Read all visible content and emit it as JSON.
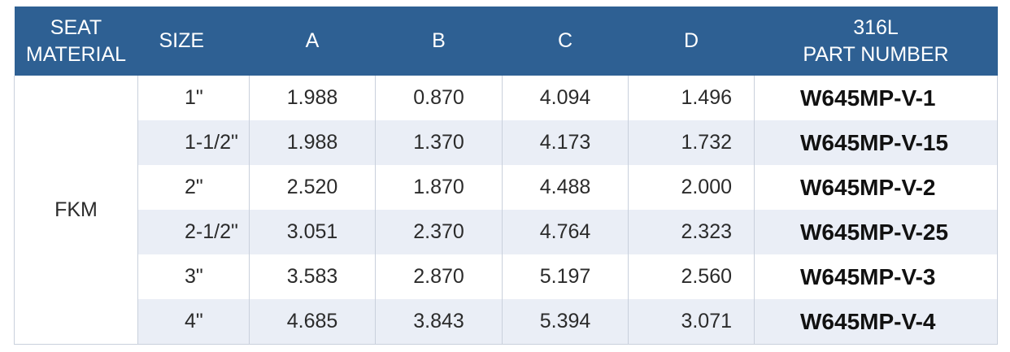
{
  "header": {
    "seat_material": [
      "SEAT",
      "MATERIAL"
    ],
    "size": "SIZE",
    "a": "A",
    "b": "B",
    "c": "C",
    "d": "D",
    "part_number": [
      "316L",
      "PART NUMBER"
    ]
  },
  "seat_material": "FKM",
  "rows": [
    {
      "size": "1\"",
      "a": "1.988",
      "b": "0.870",
      "c": "4.094",
      "d": "1.496",
      "part": "W645MP-V-1"
    },
    {
      "size": "1-1/2\"",
      "a": "1.988",
      "b": "1.370",
      "c": "4.173",
      "d": "1.732",
      "part": "W645MP-V-15"
    },
    {
      "size": "2\"",
      "a": "2.520",
      "b": "1.870",
      "c": "4.488",
      "d": "2.000",
      "part": "W645MP-V-2"
    },
    {
      "size": "2-1/2\"",
      "a": "3.051",
      "b": "2.370",
      "c": "4.764",
      "d": "2.323",
      "part": "W645MP-V-25"
    },
    {
      "size": "3\"",
      "a": "3.583",
      "b": "2.870",
      "c": "5.197",
      "d": "2.560",
      "part": "W645MP-V-3"
    },
    {
      "size": "4\"",
      "a": "4.685",
      "b": "3.843",
      "c": "5.394",
      "d": "3.071",
      "part": "W645MP-V-4"
    }
  ],
  "colors": {
    "header_bg": "#2e6093",
    "header_text": "#ffffff",
    "stripe": "#eaeef6",
    "grid": "#c9d0dc"
  }
}
